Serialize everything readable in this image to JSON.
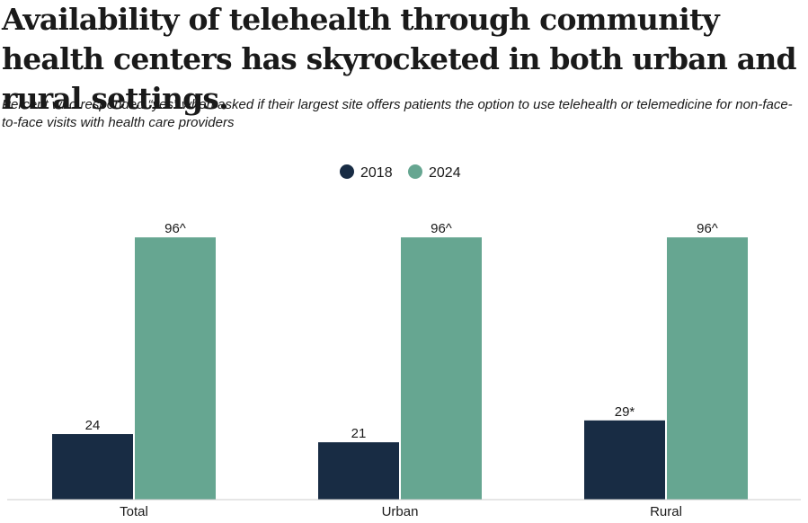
{
  "title": "Availability of telehealth through community health centers has skyrocketed in both urban and rural settings.",
  "subtitle": "Percent who responded “yes” when asked if their largest site offers patients the option to use telehealth or telemedicine for non-face-to-face visits with health care providers",
  "colors": {
    "s2018": "#182c44",
    "s2024": "#66a691",
    "axis": "#cccccc"
  },
  "chart_data": {
    "type": "bar",
    "categories": [
      "Total",
      "Urban",
      "Rural"
    ],
    "series": [
      {
        "name": "2018",
        "values": [
          24,
          21,
          29
        ],
        "labels": [
          "24",
          "21",
          "29*"
        ]
      },
      {
        "name": "2024",
        "values": [
          96,
          96,
          96
        ],
        "labels": [
          "96^",
          "96^",
          "96^"
        ]
      }
    ],
    "ylim": [
      0,
      100
    ],
    "legend": "top-center",
    "xlabel": "",
    "ylabel": ""
  }
}
